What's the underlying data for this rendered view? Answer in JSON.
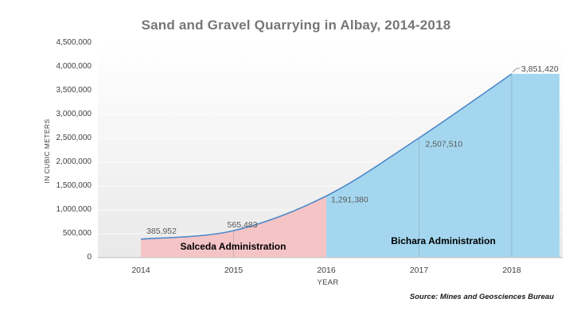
{
  "title": "Sand and Gravel Quarrying in Albay, 2014-2018",
  "source_note": "Source: Mines and Geosciences Bureau",
  "chart_data": {
    "type": "area",
    "title": "Sand and Gravel Quarrying in Albay, 2014-2018",
    "xlabel": "YEAR",
    "ylabel": "IN CUBIC METERS",
    "x": [
      "2014",
      "2015",
      "2016",
      "2017",
      "2018"
    ],
    "values": [
      385952,
      565483,
      1291380,
      2507510,
      3851420
    ],
    "data_labels": [
      "385,952",
      "565,483",
      "1,291,380",
      "2,507,510",
      "3,851,420"
    ],
    "ylim": [
      0,
      4500000
    ],
    "ytick_step": 500000,
    "yticks": [
      "0",
      "500,000",
      "1,000,000",
      "1,500,000",
      "2,000,000",
      "2,500,000",
      "3,000,000",
      "3,500,000",
      "4,000,000",
      "4,500,000"
    ],
    "legend": "none",
    "grid": "faint horizontal gridlines, vertical year lines inside shaded regions",
    "regions": [
      {
        "label": "Salceda Administration",
        "from": "2014",
        "to": "2016",
        "fill": "#f5c4c6"
      },
      {
        "label": "Bichara Administration",
        "from": "2016",
        "to": "2018",
        "fill": "#a4d7ef"
      }
    ],
    "line_color": "#4d89c9",
    "axis_color": "#c6c6c6",
    "label_color": "#595959",
    "title_color": "#767676"
  }
}
